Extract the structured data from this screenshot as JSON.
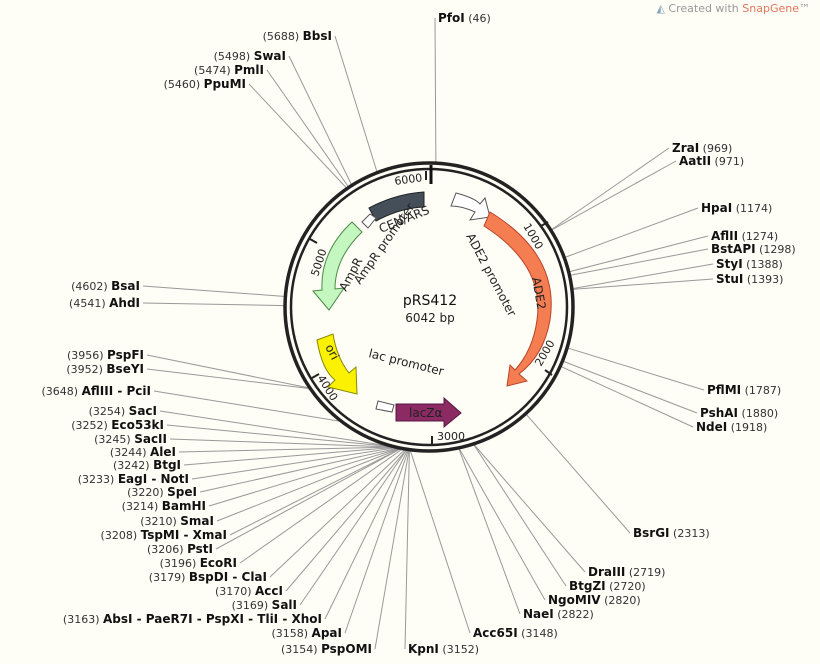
{
  "credit": {
    "prefix": "Created with ",
    "brand": "SnapGene",
    "suffix": "™"
  },
  "plasmid": {
    "name": "pRS412",
    "length_label": "6042 bp",
    "total_bp": 6042
  },
  "ticks": [
    "1000",
    "2000",
    "3000",
    "4000",
    "5000",
    "6000"
  ],
  "features": [
    {
      "label": "CEN/ARS",
      "color": "#454f5a",
      "inner_text": ""
    },
    {
      "label": "ADE2 promoter",
      "color": "#ffffff",
      "inner_text": ""
    },
    {
      "label": "ADE2",
      "color": "#f47d52",
      "inner_text": "ADE2"
    },
    {
      "label": "AmpR",
      "color": "#c4f7c0",
      "inner_text": ""
    },
    {
      "label": "AmpR promoter",
      "color": "#ffffff",
      "inner_text": ""
    },
    {
      "label": "ori",
      "color": "#fbf203",
      "inner_text": "ori"
    },
    {
      "label": "lac promoter",
      "color": "#ffffff",
      "inner_text": ""
    },
    {
      "label": "lacZα",
      "color": "#8b2a63",
      "inner_text": "lacZα"
    }
  ],
  "sites": [
    {
      "name": "PfoI",
      "pos": "(46)"
    },
    {
      "name": "ZraI",
      "pos": "(969)"
    },
    {
      "name": "AatII",
      "pos": "(971)"
    },
    {
      "name": "HpaI",
      "pos": "(1174)"
    },
    {
      "name": "AflII",
      "pos": "(1274)"
    },
    {
      "name": "BstAPI",
      "pos": "(1298)"
    },
    {
      "name": "StyI",
      "pos": "(1388)"
    },
    {
      "name": "StuI",
      "pos": "(1393)"
    },
    {
      "name": "PflMI",
      "pos": "(1787)"
    },
    {
      "name": "PshAI",
      "pos": "(1880)"
    },
    {
      "name": "NdeI",
      "pos": "(1918)"
    },
    {
      "name": "BsrGI",
      "pos": "(2313)"
    },
    {
      "name": "DraIII",
      "pos": "(2719)"
    },
    {
      "name": "BtgZI",
      "pos": "(2720)"
    },
    {
      "name": "NgoMIV",
      "pos": "(2820)"
    },
    {
      "name": "NaeI",
      "pos": "(2822)"
    },
    {
      "name": "Acc65I",
      "pos": "(3148)"
    },
    {
      "name": "KpnI",
      "pos": "(3152)"
    },
    {
      "name": "PspOMI",
      "pos": "(3154)"
    },
    {
      "name": "ApaI",
      "pos": "(3158)"
    },
    {
      "name": "AbsI - PaeR7I - PspXI - TliI - XhoI",
      "pos": "(3163)"
    },
    {
      "name": "SalI",
      "pos": "(3169)"
    },
    {
      "name": "AccI",
      "pos": "(3170)"
    },
    {
      "name": "BspDI - ClaI",
      "pos": "(3179)"
    },
    {
      "name": "EcoRI",
      "pos": "(3196)"
    },
    {
      "name": "PstI",
      "pos": "(3206)"
    },
    {
      "name": "TspMI - XmaI",
      "pos": "(3208)"
    },
    {
      "name": "SmaI",
      "pos": "(3210)"
    },
    {
      "name": "BamHI",
      "pos": "(3214)"
    },
    {
      "name": "SpeI",
      "pos": "(3220)"
    },
    {
      "name": "EagI - NotI",
      "pos": "(3233)"
    },
    {
      "name": "BtgI",
      "pos": "(3242)"
    },
    {
      "name": "AleI",
      "pos": "(3244)"
    },
    {
      "name": "SacII",
      "pos": "(3245)"
    },
    {
      "name": "Eco53kI",
      "pos": "(3252)"
    },
    {
      "name": "SacI",
      "pos": "(3254)"
    },
    {
      "name": "AflIII - PciI",
      "pos": "(3648)"
    },
    {
      "name": "BseYI",
      "pos": "(3952)"
    },
    {
      "name": "PspFI",
      "pos": "(3956)"
    },
    {
      "name": "AhdI",
      "pos": "(4541)"
    },
    {
      "name": "BsaI",
      "pos": "(4602)"
    },
    {
      "name": "PpuMI",
      "pos": "(5460)"
    },
    {
      "name": "PmlI",
      "pos": "(5474)"
    },
    {
      "name": "SwaI",
      "pos": "(5498)"
    },
    {
      "name": "BbsI",
      "pos": "(5688)"
    }
  ]
}
